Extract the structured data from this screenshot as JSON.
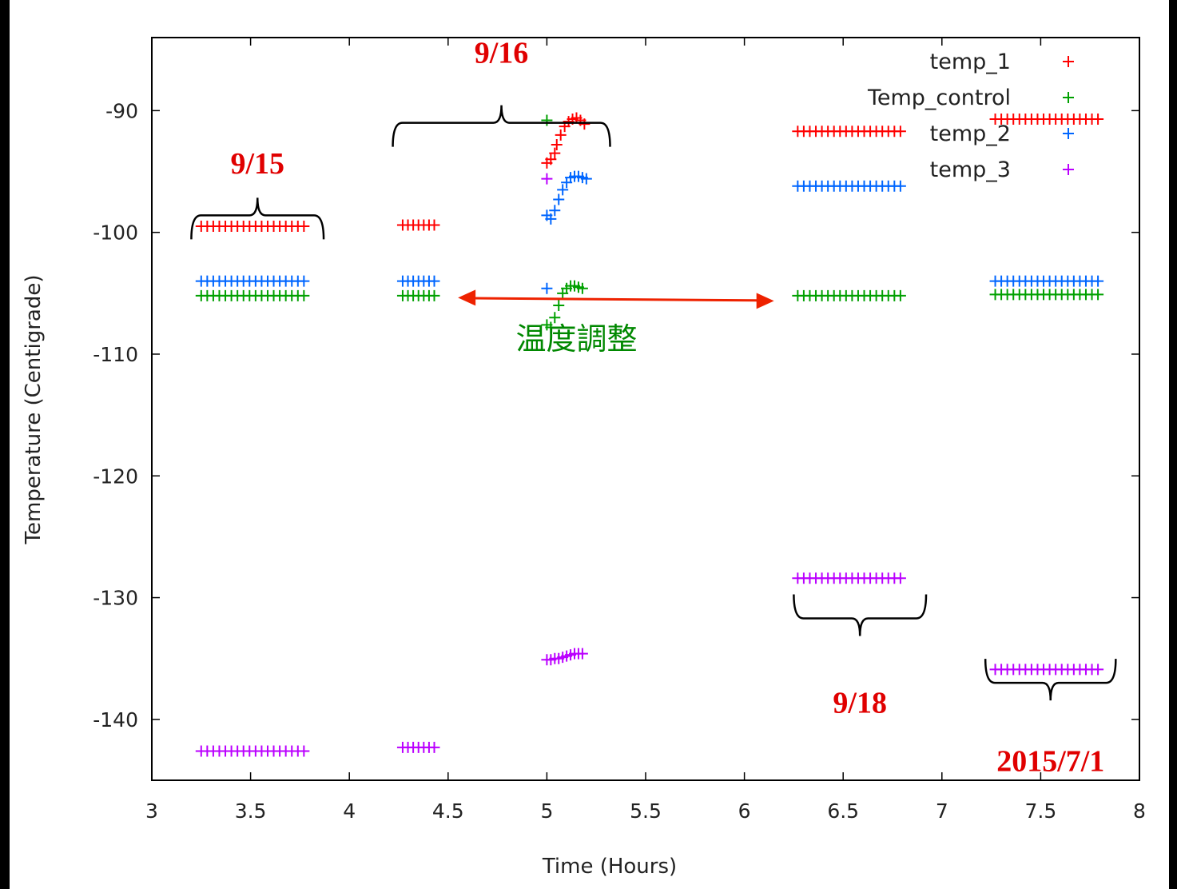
{
  "chart_data": {
    "type": "scatter",
    "title": "",
    "xlabel": "Time (Hours)",
    "ylabel": "Temperature (Centigrade)",
    "xlim": [
      3,
      8
    ],
    "ylim": [
      -145,
      -84
    ],
    "xticks": [
      "3",
      "3.5",
      "4",
      "4.5",
      "5",
      "5.5",
      "6",
      "6.5",
      "7",
      "7.5",
      "8"
    ],
    "xtick_values": [
      3,
      3.5,
      4,
      4.5,
      5,
      5.5,
      6,
      6.5,
      7,
      7.5,
      8
    ],
    "yticks": [
      "-90",
      "-100",
      "-110",
      "-120",
      "-130",
      "-140"
    ],
    "ytick_values": [
      -90,
      -100,
      -110,
      -120,
      -130,
      -140
    ],
    "grid": false,
    "legend_position": "top-right",
    "marker": "+",
    "series": [
      {
        "name": "temp_1",
        "color": "#ff0000",
        "segments": [
          {
            "x0": 3.25,
            "x1": 3.77,
            "n": 18,
            "y0": -99.5,
            "y1": -99.5
          },
          {
            "x0": 4.27,
            "x1": 4.43,
            "n": 7,
            "y0": -99.4,
            "y1": -99.4
          },
          {
            "x0": 6.27,
            "x1": 6.79,
            "n": 18,
            "y0": -91.7,
            "y1": -91.7
          },
          {
            "x0": 7.27,
            "x1": 7.79,
            "n": 18,
            "y0": -90.7,
            "y1": -90.7
          }
        ],
        "points": [
          [
            5.0,
            -94.3
          ],
          [
            5.02,
            -94.0
          ],
          [
            5.04,
            -93.5
          ],
          [
            5.05,
            -92.8
          ],
          [
            5.07,
            -92.0
          ],
          [
            5.09,
            -91.3
          ],
          [
            5.11,
            -90.9
          ],
          [
            5.13,
            -90.7
          ],
          [
            5.15,
            -90.6
          ],
          [
            5.17,
            -90.8
          ],
          [
            5.19,
            -91.1
          ]
        ]
      },
      {
        "name": "Temp_control",
        "color": "#00a000",
        "segments": [
          {
            "x0": 3.25,
            "x1": 3.77,
            "n": 18,
            "y0": -105.2,
            "y1": -105.2
          },
          {
            "x0": 4.27,
            "x1": 4.43,
            "n": 7,
            "y0": -105.2,
            "y1": -105.2
          },
          {
            "x0": 6.27,
            "x1": 6.79,
            "n": 18,
            "y0": -105.2,
            "y1": -105.2
          },
          {
            "x0": 7.27,
            "x1": 7.79,
            "n": 18,
            "y0": -105.1,
            "y1": -105.1
          }
        ],
        "points": [
          [
            5.0,
            -90.8
          ],
          [
            5.0,
            -107.6
          ],
          [
            5.02,
            -107.8
          ],
          [
            5.04,
            -107.0
          ],
          [
            5.06,
            -106.0
          ],
          [
            5.08,
            -105.0
          ],
          [
            5.1,
            -104.6
          ],
          [
            5.12,
            -104.4
          ],
          [
            5.14,
            -104.4
          ],
          [
            5.16,
            -104.5
          ],
          [
            5.18,
            -104.6
          ]
        ]
      },
      {
        "name": "temp_2",
        "color": "#0066ff",
        "segments": [
          {
            "x0": 3.25,
            "x1": 3.77,
            "n": 18,
            "y0": -104.0,
            "y1": -104.0
          },
          {
            "x0": 4.27,
            "x1": 4.43,
            "n": 7,
            "y0": -104.0,
            "y1": -104.0
          },
          {
            "x0": 6.27,
            "x1": 6.79,
            "n": 18,
            "y0": -96.2,
            "y1": -96.2
          },
          {
            "x0": 7.27,
            "x1": 7.79,
            "n": 18,
            "y0": -104.0,
            "y1": -104.0
          }
        ],
        "points": [
          [
            5.0,
            -104.6
          ],
          [
            5.0,
            -98.6
          ],
          [
            5.02,
            -98.9
          ],
          [
            5.04,
            -98.2
          ],
          [
            5.06,
            -97.3
          ],
          [
            5.08,
            -96.5
          ],
          [
            5.1,
            -95.9
          ],
          [
            5.12,
            -95.5
          ],
          [
            5.14,
            -95.4
          ],
          [
            5.16,
            -95.4
          ],
          [
            5.18,
            -95.5
          ],
          [
            5.2,
            -95.6
          ]
        ]
      },
      {
        "name": "temp_3",
        "color": "#bb00ff",
        "segments": [
          {
            "x0": 3.25,
            "x1": 3.77,
            "n": 18,
            "y0": -142.6,
            "y1": -142.6
          },
          {
            "x0": 4.27,
            "x1": 4.43,
            "n": 7,
            "y0": -142.3,
            "y1": -142.3
          },
          {
            "x0": 6.27,
            "x1": 6.79,
            "n": 18,
            "y0": -128.4,
            "y1": -128.4
          },
          {
            "x0": 7.27,
            "x1": 7.79,
            "n": 18,
            "y0": -135.9,
            "y1": -135.9
          }
        ],
        "points": [
          [
            5.0,
            -95.6
          ],
          [
            5.0,
            -135.1
          ],
          [
            5.02,
            -135.1
          ],
          [
            5.04,
            -135.0
          ],
          [
            5.06,
            -135.0
          ],
          [
            5.08,
            -134.9
          ],
          [
            5.1,
            -134.8
          ],
          [
            5.12,
            -134.7
          ],
          [
            5.14,
            -134.6
          ],
          [
            5.16,
            -134.6
          ],
          [
            5.18,
            -134.6
          ]
        ]
      }
    ],
    "annotations": [
      {
        "text": "9/15",
        "color": "#e00000",
        "x_range": [
          3.2,
          3.87
        ],
        "bracket_y": -98.6,
        "text_y": -94.3,
        "opens": "down"
      },
      {
        "text": "9/16",
        "color": "#e00000",
        "x_range": [
          4.22,
          5.32
        ],
        "bracket_y": -91.0,
        "text_y": -85.2,
        "opens": "down"
      },
      {
        "text": "9/18",
        "color": "#e00000",
        "x_range": [
          6.25,
          6.92
        ],
        "bracket_y": -131.7,
        "text_y": -138.6,
        "opens": "up"
      },
      {
        "text": "2015/7/1",
        "color": "#e00000",
        "x_range": [
          7.22,
          7.88
        ],
        "bracket_y": -137.0,
        "text_y": -143.4,
        "opens": "up"
      }
    ],
    "note": {
      "text": "温度調整",
      "color": "#008800",
      "arrow_color": "#ee2200",
      "x_range": [
        4.55,
        6.15
      ],
      "arrow_y": -105.5,
      "text_x": 5.15,
      "text_y": -108.7
    }
  }
}
